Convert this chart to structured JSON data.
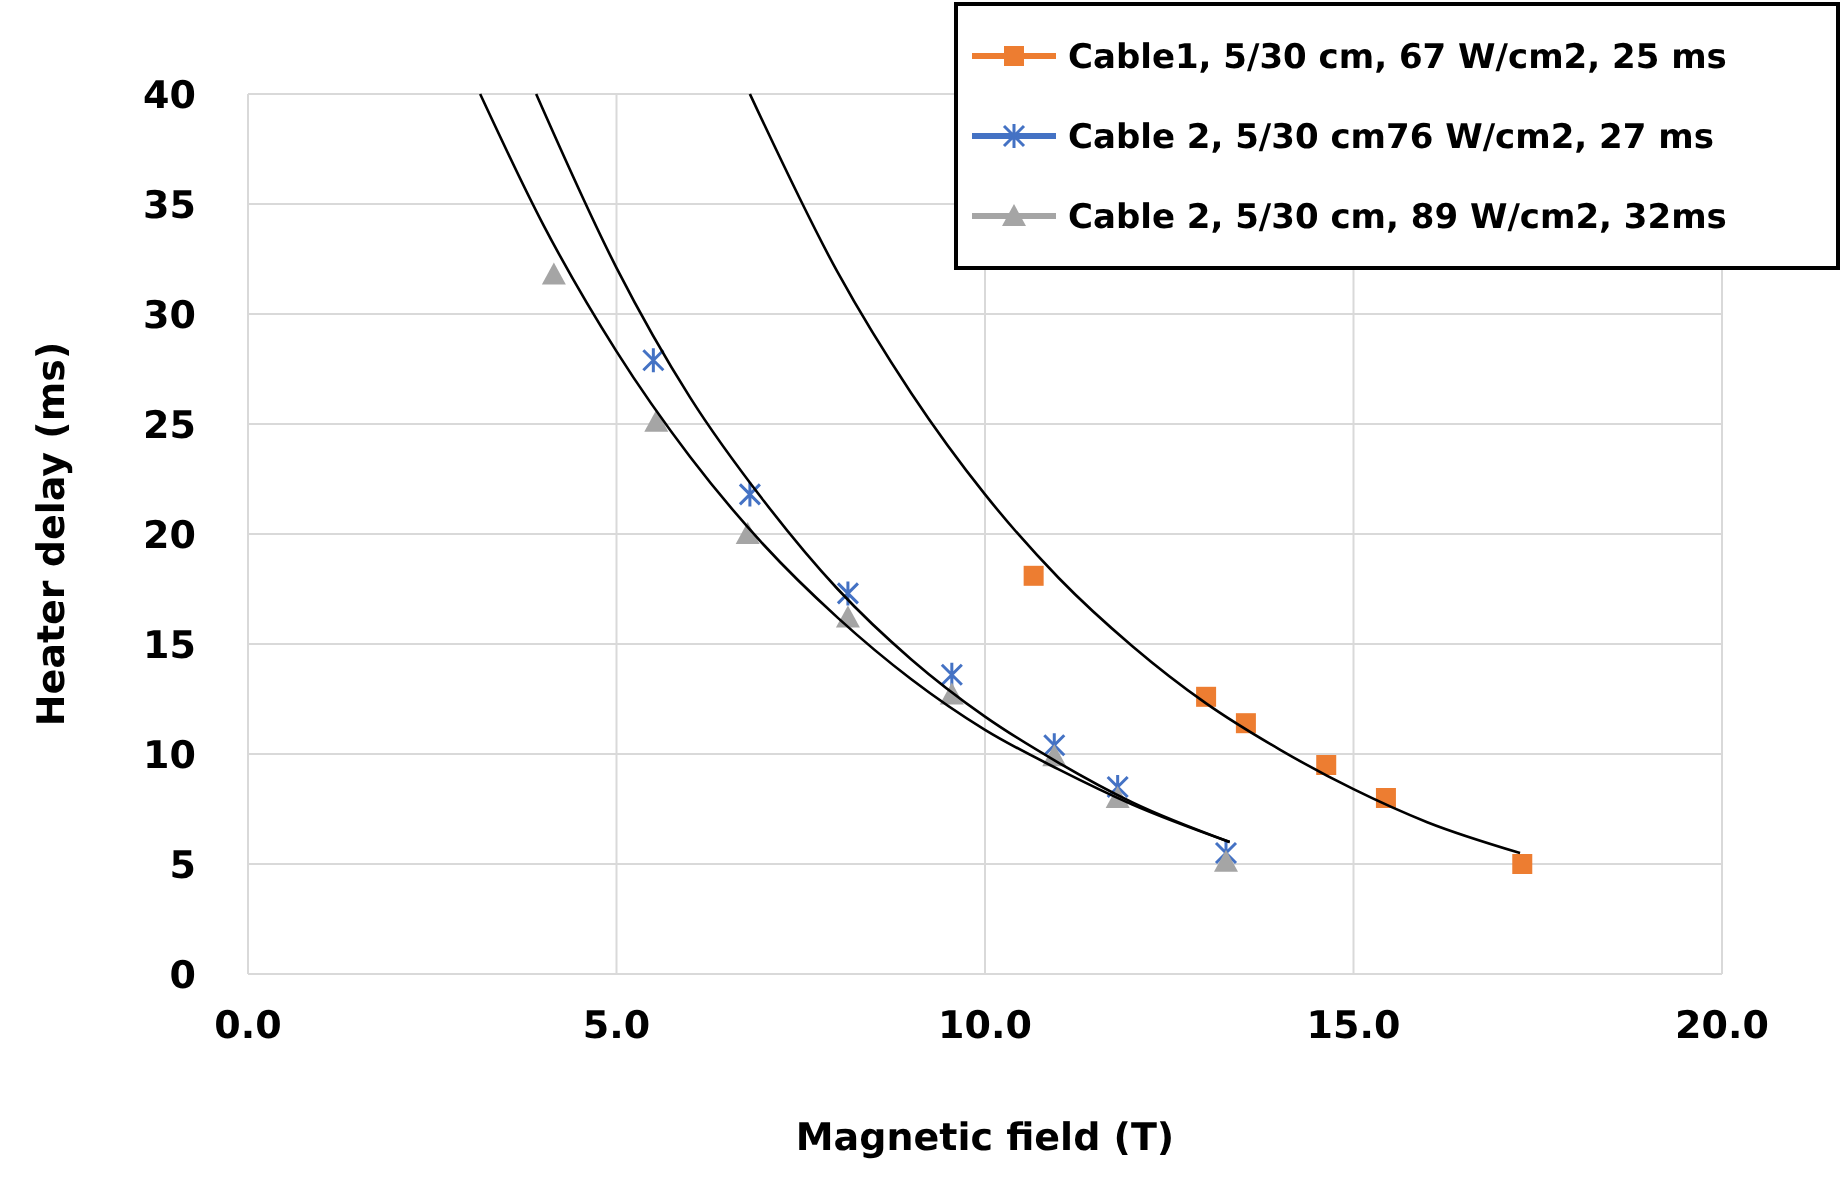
{
  "chart_data": {
    "type": "scatter",
    "xlabel": "Magnetic field (T)",
    "ylabel": "Heater delay (ms)",
    "xlim": [
      0,
      20
    ],
    "xticks": [
      {
        "value": 0,
        "label": "0.0"
      },
      {
        "value": 5,
        "label": "5.0"
      },
      {
        "value": 10,
        "label": "10.0"
      },
      {
        "value": 15,
        "label": "15.0"
      },
      {
        "value": 20,
        "label": "20.0"
      }
    ],
    "ylim": [
      0,
      40
    ],
    "yticks": [
      0,
      5,
      10,
      15,
      20,
      25,
      30,
      35,
      40
    ],
    "grid": true,
    "legend": "top right",
    "series": [
      {
        "name": "Cable1, 5/30 cm, 67 W/cm2, 25 ms",
        "color": "#ed7d31",
        "marker": "square",
        "x": [
          10.66,
          13.0,
          13.54,
          14.63,
          15.44,
          17.29
        ],
        "values": [
          18.1,
          12.6,
          11.4,
          9.5,
          8.0,
          5.0
        ]
      },
      {
        "name": "Cable 2, 5/30 cm76 W/cm2, 27 ms",
        "color": "#4472c4",
        "marker": "cross",
        "x": [
          5.5,
          6.81,
          8.14,
          9.55,
          10.94,
          11.8,
          13.27
        ],
        "values": [
          27.9,
          21.8,
          17.3,
          13.6,
          10.4,
          8.5,
          5.5
        ]
      },
      {
        "name": "Cable 2, 5/30 cm, 89 W/cm2, 32ms",
        "color": "#a5a5a5",
        "marker": "triangle",
        "x": [
          4.15,
          5.54,
          6.78,
          8.14,
          9.55,
          10.94,
          11.8,
          13.27
        ],
        "values": [
          31.8,
          25.1,
          20.0,
          16.2,
          12.7,
          9.9,
          8.0,
          5.1
        ]
      },
      {
        "type": "line",
        "color": "#000000",
        "x": [
          6.81,
          8,
          9,
          10,
          11,
          12,
          13,
          14,
          15,
          16,
          17.26
        ],
        "values": [
          40,
          31.9,
          26.4,
          21.8,
          18.0,
          14.9,
          12.3,
          10.2,
          8.4,
          6.9,
          5.5
        ]
      },
      {
        "type": "line",
        "color": "#000000",
        "x": [
          3.91,
          5,
          6,
          7,
          8,
          9,
          10,
          11,
          12,
          13.32
        ],
        "values": [
          40,
          32.1,
          26.2,
          21.5,
          17.5,
          14.3,
          11.7,
          9.6,
          7.8,
          6.0
        ]
      },
      {
        "type": "line",
        "color": "#000000",
        "x": [
          3.15,
          4,
          5,
          6,
          7,
          8,
          9,
          10,
          11,
          12,
          13.32
        ],
        "values": [
          40,
          34.1,
          28.3,
          23.5,
          19.5,
          16.2,
          13.4,
          11.1,
          9.3,
          7.7,
          6.0
        ]
      }
    ]
  }
}
